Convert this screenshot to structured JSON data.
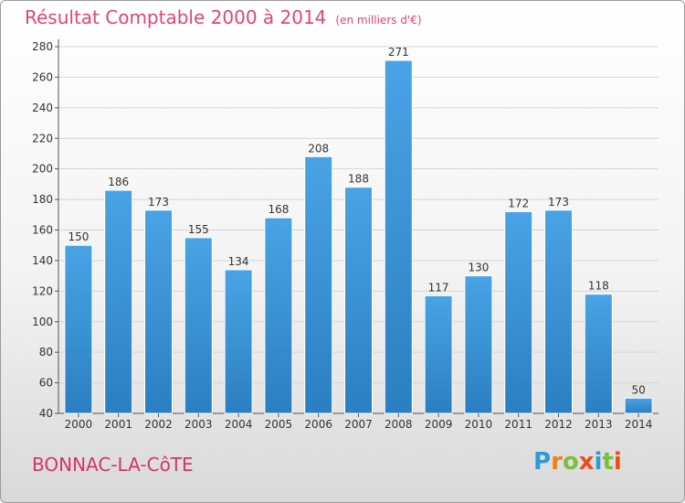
{
  "title": "Résultat Comptable 2000 à 2014",
  "unit": "(en milliers d'€)",
  "commune": "BONNAC-LA-CôTE",
  "logo": "Proxiti",
  "chart_data": {
    "type": "bar",
    "categories": [
      "2000",
      "2001",
      "2002",
      "2003",
      "2004",
      "2005",
      "2006",
      "2007",
      "2008",
      "2009",
      "2010",
      "2011",
      "2012",
      "2013",
      "2014"
    ],
    "values": [
      150,
      186,
      173,
      155,
      134,
      168,
      208,
      188,
      271,
      117,
      130,
      172,
      173,
      118,
      50
    ],
    "title": "Résultat Comptable 2000 à 2014",
    "xlabel": "",
    "ylabel": "",
    "ylim": [
      40,
      280
    ],
    "yticks": [
      40,
      60,
      80,
      100,
      120,
      140,
      160,
      180,
      200,
      220,
      240,
      260,
      280
    ],
    "grid": true,
    "bar_color": "#4aa3e6",
    "bar_color_dark": "#2a7fc2"
  }
}
